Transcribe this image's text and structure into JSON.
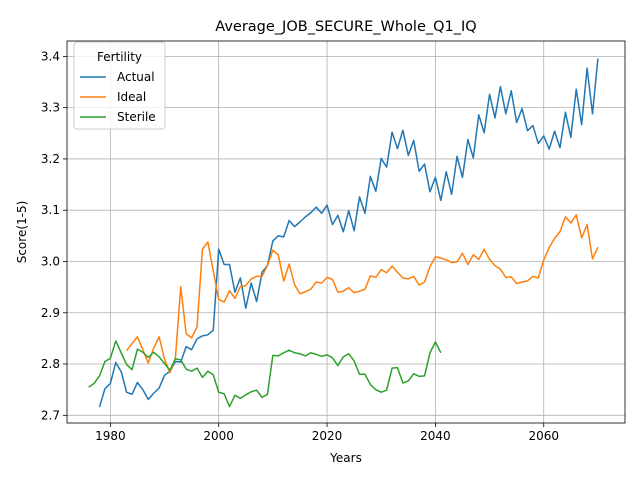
{
  "chart_data": {
    "type": "line",
    "title": "Average_JOB_SECURE_Whole_Q1_IQ",
    "xlabel": "Years",
    "ylabel": "Score(1-5)",
    "xlim": [
      1972,
      2075
    ],
    "ylim": [
      2.685,
      3.43
    ],
    "xticks": [
      1980,
      2000,
      2020,
      2040,
      2060
    ],
    "yticks": [
      2.7,
      2.8,
      2.9,
      3.0,
      3.1,
      3.2,
      3.3,
      3.4
    ],
    "grid": true,
    "legend": {
      "title": "Fertility",
      "placement": "upper-left"
    },
    "series": [
      {
        "name": "Actual",
        "color": "#1f77b4",
        "x": [
          1978,
          1979,
          1980,
          1981,
          1982,
          1983,
          1984,
          1985,
          1986,
          1987,
          1988,
          1989,
          1990,
          1991,
          1992,
          1993,
          1994,
          1995,
          1996,
          1997,
          1998,
          1999,
          2000,
          2001,
          2002,
          2003,
          2004,
          2005,
          2006,
          2007,
          2008,
          2009,
          2010,
          2011,
          2012,
          2013,
          2014,
          2015,
          2016,
          2017,
          2018,
          2019,
          2020,
          2021,
          2022,
          2023,
          2024,
          2025,
          2026,
          2027,
          2028,
          2029,
          2030,
          2031,
          2032,
          2033,
          2034,
          2035,
          2036,
          2037,
          2038,
          2039,
          2040,
          2041,
          2042,
          2043,
          2044,
          2045,
          2046,
          2047,
          2048,
          2049,
          2050,
          2051,
          2052,
          2053,
          2054,
          2055,
          2056,
          2057,
          2058,
          2059,
          2060,
          2061,
          2062,
          2063,
          2064,
          2065,
          2066,
          2067,
          2068,
          2069,
          2070
        ],
        "y": [
          2.716,
          2.752,
          2.762,
          2.803,
          2.785,
          2.745,
          2.741,
          2.764,
          2.75,
          2.731,
          2.743,
          2.753,
          2.778,
          2.786,
          2.805,
          2.804,
          2.834,
          2.828,
          2.849,
          2.855,
          2.857,
          2.866,
          3.024,
          2.994,
          2.994,
          2.94,
          2.968,
          2.909,
          2.958,
          2.922,
          2.979,
          2.992,
          3.04,
          3.05,
          3.048,
          3.08,
          3.068,
          3.077,
          3.087,
          3.095,
          3.106,
          3.094,
          3.11,
          3.072,
          3.09,
          3.058,
          3.099,
          3.06,
          3.126,
          3.094,
          3.166,
          3.137,
          3.201,
          3.184,
          3.252,
          3.22,
          3.256,
          3.207,
          3.236,
          3.176,
          3.19,
          3.136,
          3.164,
          3.119,
          3.175,
          3.131,
          3.205,
          3.164,
          3.238,
          3.202,
          3.286,
          3.251,
          3.326,
          3.28,
          3.341,
          3.288,
          3.333,
          3.271,
          3.298,
          3.255,
          3.265,
          3.23,
          3.245,
          3.219,
          3.254,
          3.222,
          3.291,
          3.242,
          3.336,
          3.267,
          3.377,
          3.288,
          3.396
        ]
      },
      {
        "name": "Ideal",
        "color": "#ff7f0e",
        "x": [
          1983,
          1984,
          1985,
          1986,
          1987,
          1988,
          1989,
          1990,
          1991,
          1992,
          1993,
          1994,
          1995,
          1996,
          1997,
          1998,
          1999,
          2000,
          2001,
          2002,
          2003,
          2004,
          2005,
          2006,
          2007,
          2008,
          2009,
          2010,
          2011,
          2012,
          2013,
          2014,
          2015,
          2016,
          2017,
          2018,
          2019,
          2020,
          2021,
          2022,
          2023,
          2024,
          2025,
          2026,
          2027,
          2028,
          2029,
          2030,
          2031,
          2032,
          2033,
          2034,
          2035,
          2036,
          2037,
          2038,
          2039,
          2040,
          2041,
          2042,
          2043,
          2044,
          2045,
          2046,
          2047,
          2048,
          2049,
          2050,
          2051,
          2052,
          2053,
          2054,
          2055,
          2056,
          2057,
          2058,
          2059,
          2060,
          2061,
          2062,
          2063,
          2064,
          2065,
          2066,
          2067,
          2068,
          2069,
          2070
        ],
        "y": [
          2.826,
          2.84,
          2.853,
          2.828,
          2.802,
          2.831,
          2.853,
          2.81,
          2.783,
          2.811,
          2.951,
          2.859,
          2.851,
          2.872,
          3.024,
          3.038,
          2.982,
          2.926,
          2.921,
          2.943,
          2.928,
          2.951,
          2.953,
          2.966,
          2.971,
          2.971,
          2.992,
          3.022,
          3.013,
          2.962,
          2.995,
          2.955,
          2.937,
          2.941,
          2.946,
          2.96,
          2.958,
          2.969,
          2.965,
          2.94,
          2.942,
          2.949,
          2.939,
          2.942,
          2.946,
          2.972,
          2.969,
          2.984,
          2.978,
          2.991,
          2.979,
          2.968,
          2.966,
          2.971,
          2.954,
          2.96,
          2.99,
          3.009,
          3.007,
          3.003,
          2.998,
          2.999,
          3.016,
          2.994,
          3.013,
          3.004,
          3.024,
          3.004,
          2.992,
          2.985,
          2.969,
          2.97,
          2.957,
          2.96,
          2.962,
          2.971,
          2.968,
          3.003,
          3.027,
          3.045,
          3.058,
          3.087,
          3.075,
          3.091,
          3.046,
          3.072,
          3.005,
          3.028
        ]
      },
      {
        "name": "Sterile",
        "color": "#2ca02c",
        "x": [
          1976,
          1977,
          1978,
          1979,
          1980,
          1981,
          1982,
          1983,
          1984,
          1985,
          1986,
          1987,
          1988,
          1989,
          1990,
          1991,
          1992,
          1993,
          1994,
          1995,
          1996,
          1997,
          1998,
          1999,
          2000,
          2001,
          2002,
          2003,
          2004,
          2005,
          2006,
          2007,
          2008,
          2009,
          2010,
          2011,
          2012,
          2013,
          2014,
          2015,
          2016,
          2017,
          2018,
          2019,
          2020,
          2021,
          2022,
          2023,
          2024,
          2025,
          2026,
          2027,
          2028,
          2029,
          2030,
          2031,
          2032,
          2033,
          2034,
          2035,
          2036,
          2037,
          2038,
          2039,
          2040,
          2041
        ],
        "y": [
          2.755,
          2.762,
          2.777,
          2.805,
          2.811,
          2.845,
          2.822,
          2.799,
          2.789,
          2.829,
          2.823,
          2.813,
          2.823,
          2.814,
          2.801,
          2.788,
          2.81,
          2.808,
          2.79,
          2.786,
          2.792,
          2.774,
          2.786,
          2.779,
          2.745,
          2.742,
          2.717,
          2.739,
          2.733,
          2.74,
          2.746,
          2.749,
          2.735,
          2.741,
          2.817,
          2.816,
          2.822,
          2.827,
          2.822,
          2.82,
          2.816,
          2.822,
          2.819,
          2.815,
          2.818,
          2.812,
          2.797,
          2.814,
          2.82,
          2.806,
          2.78,
          2.78,
          2.76,
          2.75,
          2.745,
          2.749,
          2.792,
          2.793,
          2.763,
          2.767,
          2.781,
          2.776,
          2.777,
          2.822,
          2.843,
          2.822
        ]
      }
    ]
  }
}
